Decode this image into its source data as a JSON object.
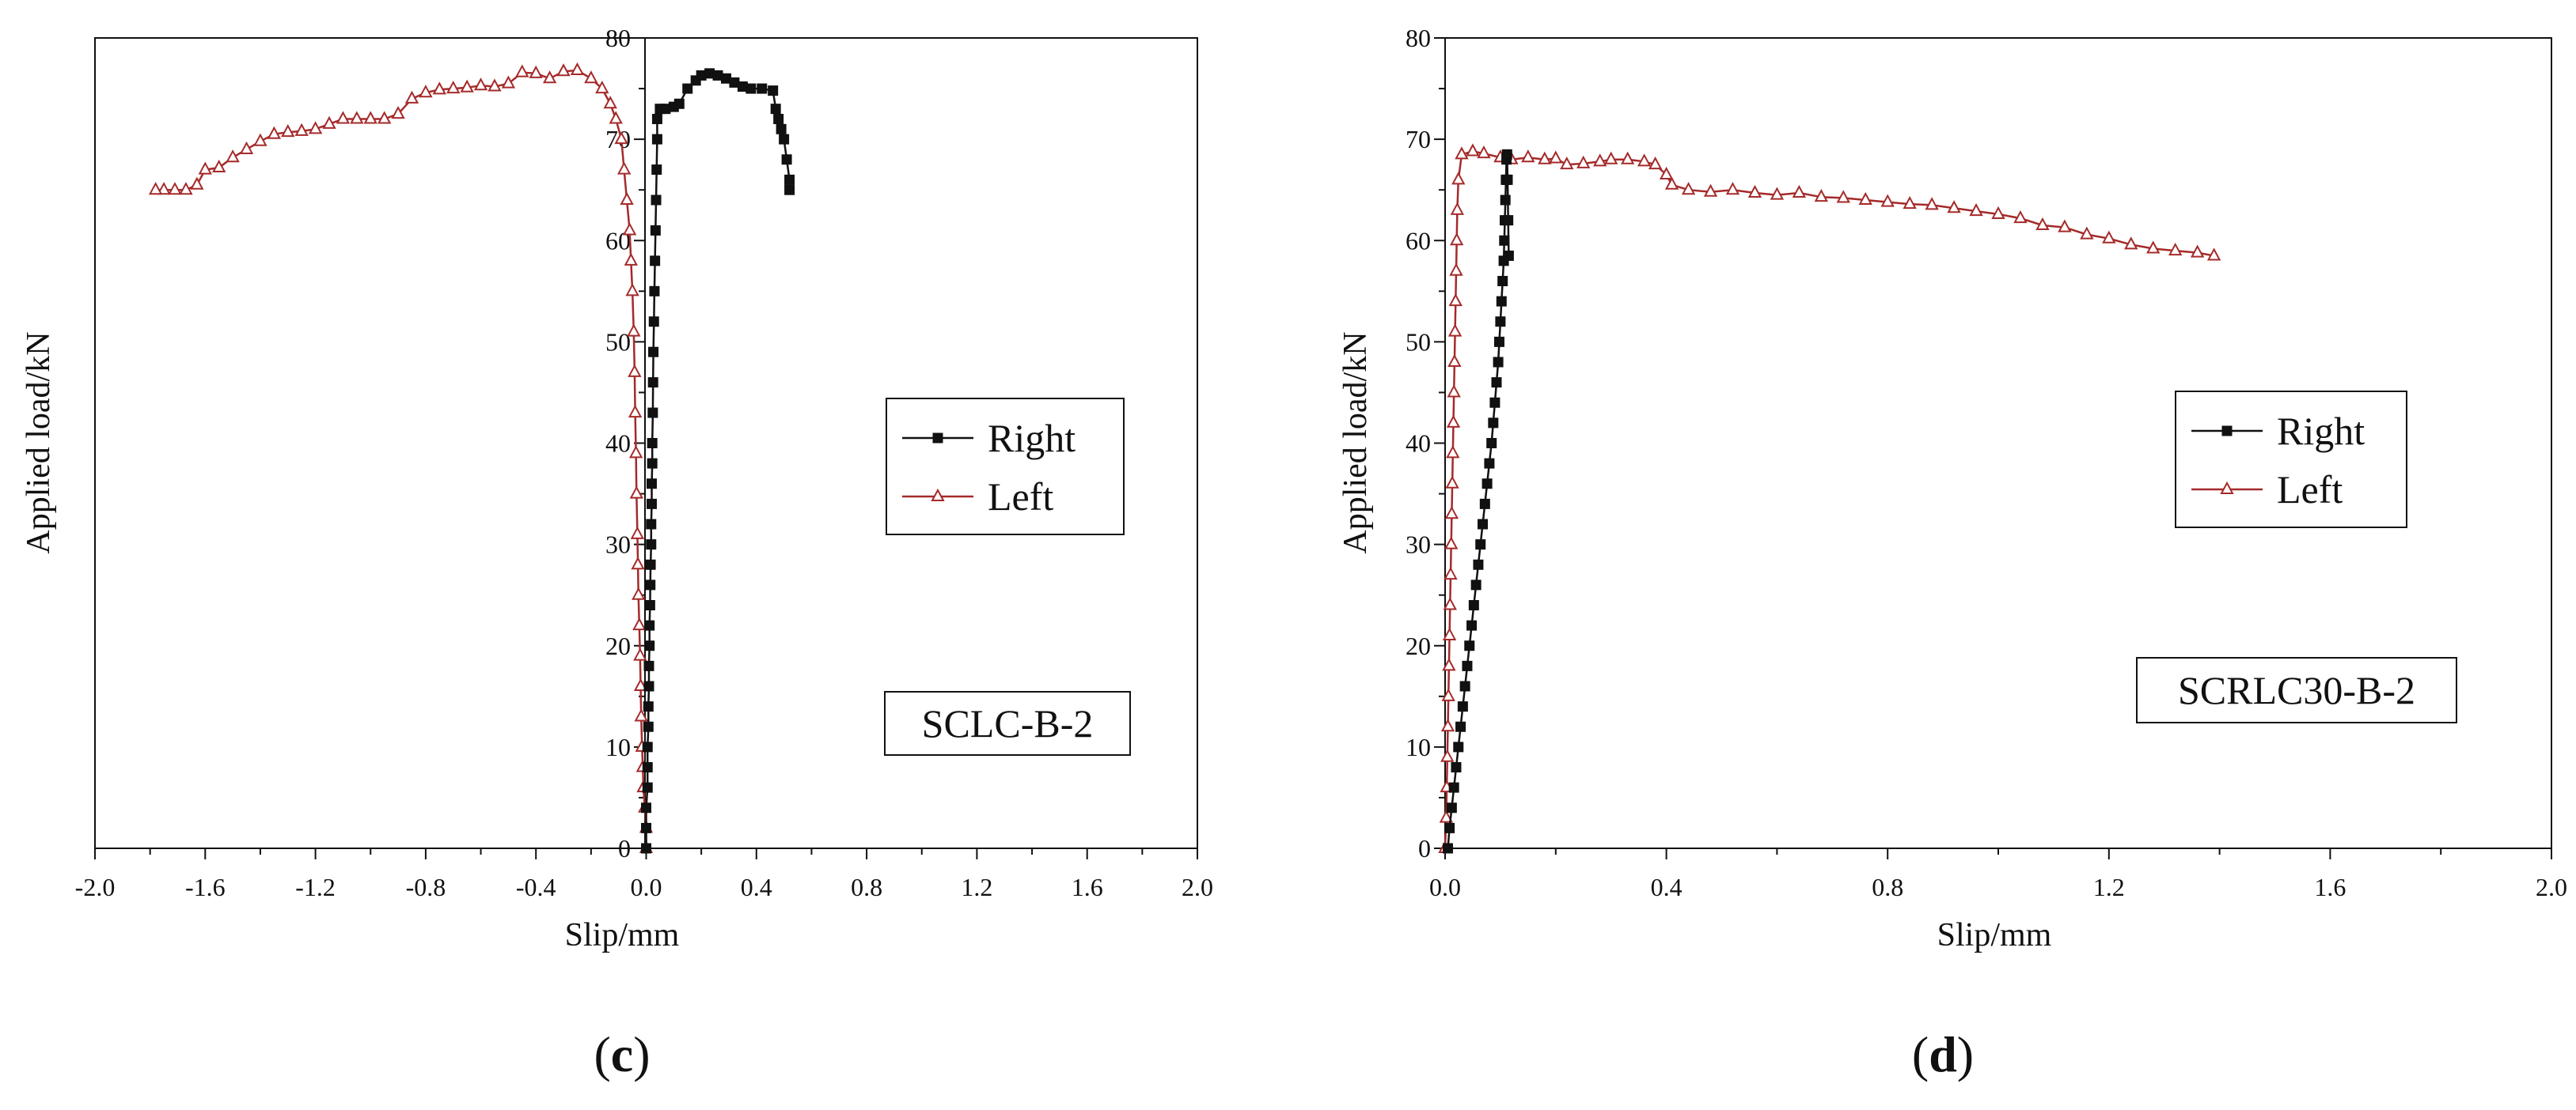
{
  "chart_data": [
    {
      "type": "line",
      "panel_label": "(c)",
      "specimen_label": "SCLC-B-2",
      "xlabel": "Slip/mm",
      "ylabel": "Applied load/kN",
      "xlim": [
        -2.0,
        2.0
      ],
      "ylim": [
        0,
        80
      ],
      "x_ticks": [
        -2.0,
        -1.6,
        -1.2,
        -0.8,
        -0.4,
        0.0,
        0.4,
        0.8,
        1.2,
        1.6,
        2.0
      ],
      "x_tick_labels": [
        "-2.0",
        "-1.6",
        "-1.2",
        "-0.8",
        "-0.4",
        "0.0",
        "0.4",
        "0.8",
        "1.2",
        "1.6",
        "2.0"
      ],
      "y_ticks": [
        0,
        10,
        20,
        30,
        40,
        50,
        60,
        70,
        80
      ],
      "y_tick_labels": [
        "0",
        "10",
        "20",
        "30",
        "40",
        "50",
        "60",
        "70",
        "80"
      ],
      "legend_position": "center-right",
      "grid": false,
      "series": [
        {
          "name": "Right",
          "color": "#111111",
          "marker": "square",
          "points": [
            [
              0.0,
              0
            ],
            [
              0.0,
              2
            ],
            [
              0.0,
              4
            ],
            [
              0.005,
              6
            ],
            [
              0.005,
              8
            ],
            [
              0.005,
              10
            ],
            [
              0.008,
              12
            ],
            [
              0.008,
              14
            ],
            [
              0.01,
              16
            ],
            [
              0.01,
              18
            ],
            [
              0.012,
              20
            ],
            [
              0.012,
              22
            ],
            [
              0.014,
              24
            ],
            [
              0.015,
              26
            ],
            [
              0.016,
              28
            ],
            [
              0.018,
              30
            ],
            [
              0.018,
              32
            ],
            [
              0.02,
              34
            ],
            [
              0.02,
              36
            ],
            [
              0.022,
              38
            ],
            [
              0.022,
              40
            ],
            [
              0.024,
              43
            ],
            [
              0.025,
              46
            ],
            [
              0.026,
              49
            ],
            [
              0.028,
              52
            ],
            [
              0.03,
              55
            ],
            [
              0.032,
              58
            ],
            [
              0.034,
              61
            ],
            [
              0.036,
              64
            ],
            [
              0.038,
              67
            ],
            [
              0.04,
              70
            ],
            [
              0.04,
              72
            ],
            [
              0.05,
              73
            ],
            [
              0.07,
              73
            ],
            [
              0.1,
              73.2
            ],
            [
              0.12,
              73.5
            ],
            [
              0.15,
              75
            ],
            [
              0.18,
              75.8
            ],
            [
              0.2,
              76.3
            ],
            [
              0.23,
              76.5
            ],
            [
              0.26,
              76.3
            ],
            [
              0.29,
              76
            ],
            [
              0.32,
              75.6
            ],
            [
              0.35,
              75.2
            ],
            [
              0.38,
              75
            ],
            [
              0.42,
              75
            ],
            [
              0.46,
              74.8
            ],
            [
              0.47,
              73
            ],
            [
              0.48,
              72
            ],
            [
              0.49,
              71
            ],
            [
              0.5,
              70
            ],
            [
              0.51,
              68
            ],
            [
              0.52,
              66
            ],
            [
              0.52,
              65
            ]
          ]
        },
        {
          "name": "Left",
          "color": "#a52a2a",
          "marker": "open-triangle",
          "points": [
            [
              0.0,
              0
            ],
            [
              0.0,
              2
            ],
            [
              -0.005,
              4
            ],
            [
              -0.01,
              6
            ],
            [
              -0.012,
              8
            ],
            [
              -0.015,
              10
            ],
            [
              -0.018,
              13
            ],
            [
              -0.02,
              16
            ],
            [
              -0.022,
              19
            ],
            [
              -0.025,
              22
            ],
            [
              -0.028,
              25
            ],
            [
              -0.03,
              28
            ],
            [
              -0.032,
              31
            ],
            [
              -0.035,
              35
            ],
            [
              -0.037,
              39
            ],
            [
              -0.04,
              43
            ],
            [
              -0.042,
              47
            ],
            [
              -0.045,
              51
            ],
            [
              -0.05,
              55
            ],
            [
              -0.055,
              58
            ],
            [
              -0.06,
              61
            ],
            [
              -0.07,
              64
            ],
            [
              -0.08,
              67
            ],
            [
              -0.09,
              70
            ],
            [
              -0.11,
              72
            ],
            [
              -0.13,
              73.5
            ],
            [
              -0.16,
              75
            ],
            [
              -0.2,
              76
            ],
            [
              -0.25,
              76.8
            ],
            [
              -0.3,
              76.7
            ],
            [
              -0.35,
              76
            ],
            [
              -0.4,
              76.5
            ],
            [
              -0.45,
              76.6
            ],
            [
              -0.5,
              75.5
            ],
            [
              -0.55,
              75.2
            ],
            [
              -0.6,
              75.3
            ],
            [
              -0.65,
              75.1
            ],
            [
              -0.7,
              75
            ],
            [
              -0.75,
              74.9
            ],
            [
              -0.8,
              74.6
            ],
            [
              -0.85,
              74
            ],
            [
              -0.9,
              72.5
            ],
            [
              -0.95,
              72
            ],
            [
              -1.0,
              72
            ],
            [
              -1.05,
              72
            ],
            [
              -1.1,
              72
            ],
            [
              -1.15,
              71.5
            ],
            [
              -1.2,
              71
            ],
            [
              -1.25,
              70.8
            ],
            [
              -1.3,
              70.7
            ],
            [
              -1.35,
              70.5
            ],
            [
              -1.4,
              69.8
            ],
            [
              -1.45,
              69
            ],
            [
              -1.5,
              68.2
            ],
            [
              -1.55,
              67.2
            ],
            [
              -1.6,
              67
            ],
            [
              -1.63,
              65.5
            ],
            [
              -1.67,
              65
            ],
            [
              -1.71,
              65
            ],
            [
              -1.75,
              65
            ],
            [
              -1.78,
              65
            ]
          ]
        }
      ]
    },
    {
      "type": "line",
      "panel_label": "(d)",
      "specimen_label": "SCRLC30-B-2",
      "xlabel": "Slip/mm",
      "ylabel": "Applied load/kN",
      "xlim": [
        0.0,
        2.0
      ],
      "ylim": [
        0,
        80
      ],
      "x_ticks": [
        0.0,
        0.4,
        0.8,
        1.2,
        1.6,
        2.0
      ],
      "x_tick_labels": [
        "0.0",
        "0.4",
        "0.8",
        "1.2",
        "1.6",
        "2.0"
      ],
      "y_ticks": [
        0,
        10,
        20,
        30,
        40,
        50,
        60,
        70,
        80
      ],
      "y_tick_labels": [
        "0",
        "10",
        "20",
        "30",
        "40",
        "50",
        "60",
        "70",
        "80"
      ],
      "legend_position": "center-right",
      "grid": false,
      "series": [
        {
          "name": "Right",
          "color": "#111111",
          "marker": "square",
          "points": [
            [
              0.005,
              0
            ],
            [
              0.008,
              2
            ],
            [
              0.012,
              4
            ],
            [
              0.016,
              6
            ],
            [
              0.02,
              8
            ],
            [
              0.024,
              10
            ],
            [
              0.028,
              12
            ],
            [
              0.032,
              14
            ],
            [
              0.036,
              16
            ],
            [
              0.04,
              18
            ],
            [
              0.044,
              20
            ],
            [
              0.048,
              22
            ],
            [
              0.052,
              24
            ],
            [
              0.056,
              26
            ],
            [
              0.06,
              28
            ],
            [
              0.064,
              30
            ],
            [
              0.068,
              32
            ],
            [
              0.072,
              34
            ],
            [
              0.076,
              36
            ],
            [
              0.08,
              38
            ],
            [
              0.084,
              40
            ],
            [
              0.087,
              42
            ],
            [
              0.09,
              44
            ],
            [
              0.093,
              46
            ],
            [
              0.096,
              48
            ],
            [
              0.098,
              50
            ],
            [
              0.1,
              52
            ],
            [
              0.102,
              54
            ],
            [
              0.104,
              56
            ],
            [
              0.106,
              58
            ],
            [
              0.107,
              60
            ],
            [
              0.108,
              62
            ],
            [
              0.109,
              64
            ],
            [
              0.11,
              66
            ],
            [
              0.111,
              68
            ],
            [
              0.112,
              68.5
            ],
            [
              0.113,
              66
            ],
            [
              0.114,
              62
            ],
            [
              0.115,
              58.5
            ]
          ]
        },
        {
          "name": "Left",
          "color": "#a52a2a",
          "marker": "open-triangle",
          "points": [
            [
              0.0,
              0
            ],
            [
              0.002,
              3
            ],
            [
              0.003,
              6
            ],
            [
              0.004,
              9
            ],
            [
              0.005,
              12
            ],
            [
              0.006,
              15
            ],
            [
              0.007,
              18
            ],
            [
              0.008,
              21
            ],
            [
              0.009,
              24
            ],
            [
              0.01,
              27
            ],
            [
              0.011,
              30
            ],
            [
              0.012,
              33
            ],
            [
              0.013,
              36
            ],
            [
              0.014,
              39
            ],
            [
              0.015,
              42
            ],
            [
              0.016,
              45
            ],
            [
              0.017,
              48
            ],
            [
              0.018,
              51
            ],
            [
              0.019,
              54
            ],
            [
              0.02,
              57
            ],
            [
              0.021,
              60
            ],
            [
              0.022,
              63
            ],
            [
              0.024,
              66
            ],
            [
              0.03,
              68.5
            ],
            [
              0.05,
              68.8
            ],
            [
              0.07,
              68.6
            ],
            [
              0.1,
              68.2
            ],
            [
              0.12,
              68
            ],
            [
              0.15,
              68.2
            ],
            [
              0.18,
              68
            ],
            [
              0.2,
              68.1
            ],
            [
              0.22,
              67.5
            ],
            [
              0.25,
              67.6
            ],
            [
              0.28,
              67.8
            ],
            [
              0.3,
              68
            ],
            [
              0.33,
              68
            ],
            [
              0.36,
              67.8
            ],
            [
              0.38,
              67.5
            ],
            [
              0.4,
              66.5
            ],
            [
              0.41,
              65.5
            ],
            [
              0.44,
              65
            ],
            [
              0.48,
              64.8
            ],
            [
              0.52,
              65
            ],
            [
              0.56,
              64.7
            ],
            [
              0.6,
              64.5
            ],
            [
              0.64,
              64.7
            ],
            [
              0.68,
              64.3
            ],
            [
              0.72,
              64.2
            ],
            [
              0.76,
              64
            ],
            [
              0.8,
              63.8
            ],
            [
              0.84,
              63.6
            ],
            [
              0.88,
              63.5
            ],
            [
              0.92,
              63.2
            ],
            [
              0.96,
              62.9
            ],
            [
              1.0,
              62.6
            ],
            [
              1.04,
              62.2
            ],
            [
              1.08,
              61.5
            ],
            [
              1.12,
              61.3
            ],
            [
              1.16,
              60.6
            ],
            [
              1.2,
              60.2
            ],
            [
              1.24,
              59.6
            ],
            [
              1.28,
              59.2
            ],
            [
              1.32,
              59
            ],
            [
              1.36,
              58.8
            ],
            [
              1.39,
              58.5
            ]
          ]
        }
      ]
    }
  ]
}
